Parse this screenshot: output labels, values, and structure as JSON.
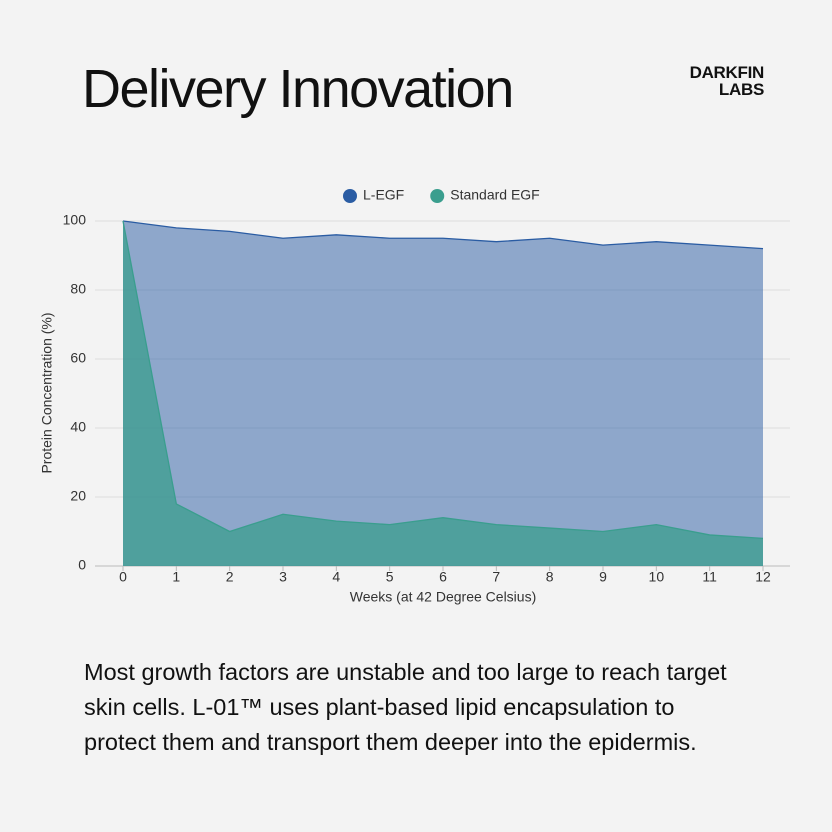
{
  "header": {
    "title": "Delivery Innovation",
    "brand": [
      "DARKFIN",
      "LABS"
    ]
  },
  "chart_data": {
    "type": "area",
    "x": [
      0,
      1,
      2,
      3,
      4,
      5,
      6,
      7,
      8,
      9,
      10,
      11,
      12
    ],
    "series": [
      {
        "name": "L-EGF",
        "color": "#2a5ca3",
        "values": [
          100,
          98,
          97,
          95,
          96,
          95,
          95,
          94,
          95,
          93,
          94,
          93,
          92
        ]
      },
      {
        "name": "Standard EGF",
        "color": "#3a9e8e",
        "values": [
          100,
          18,
          10,
          15,
          13,
          12,
          14,
          12,
          11,
          10,
          12,
          9,
          8
        ]
      }
    ],
    "xlim": [
      0,
      12
    ],
    "xticks": [
      0,
      1,
      2,
      3,
      4,
      5,
      6,
      7,
      8,
      9,
      10,
      11,
      12
    ],
    "ylim": [
      0,
      100
    ],
    "yticks": [
      0,
      20,
      40,
      60,
      80,
      100
    ],
    "xlabel": "Weeks (at 42 Degree Celsius)",
    "ylabel": "Protein Concentration (%)",
    "grid": true,
    "legend": "top"
  },
  "body": {
    "lines": [
      "Most growth factors are unstable and too large to reach target",
      "skin cells. L-01™ uses plant-based lipid encapsulation to",
      "protect them and transport them deeper into the epidermis."
    ]
  }
}
